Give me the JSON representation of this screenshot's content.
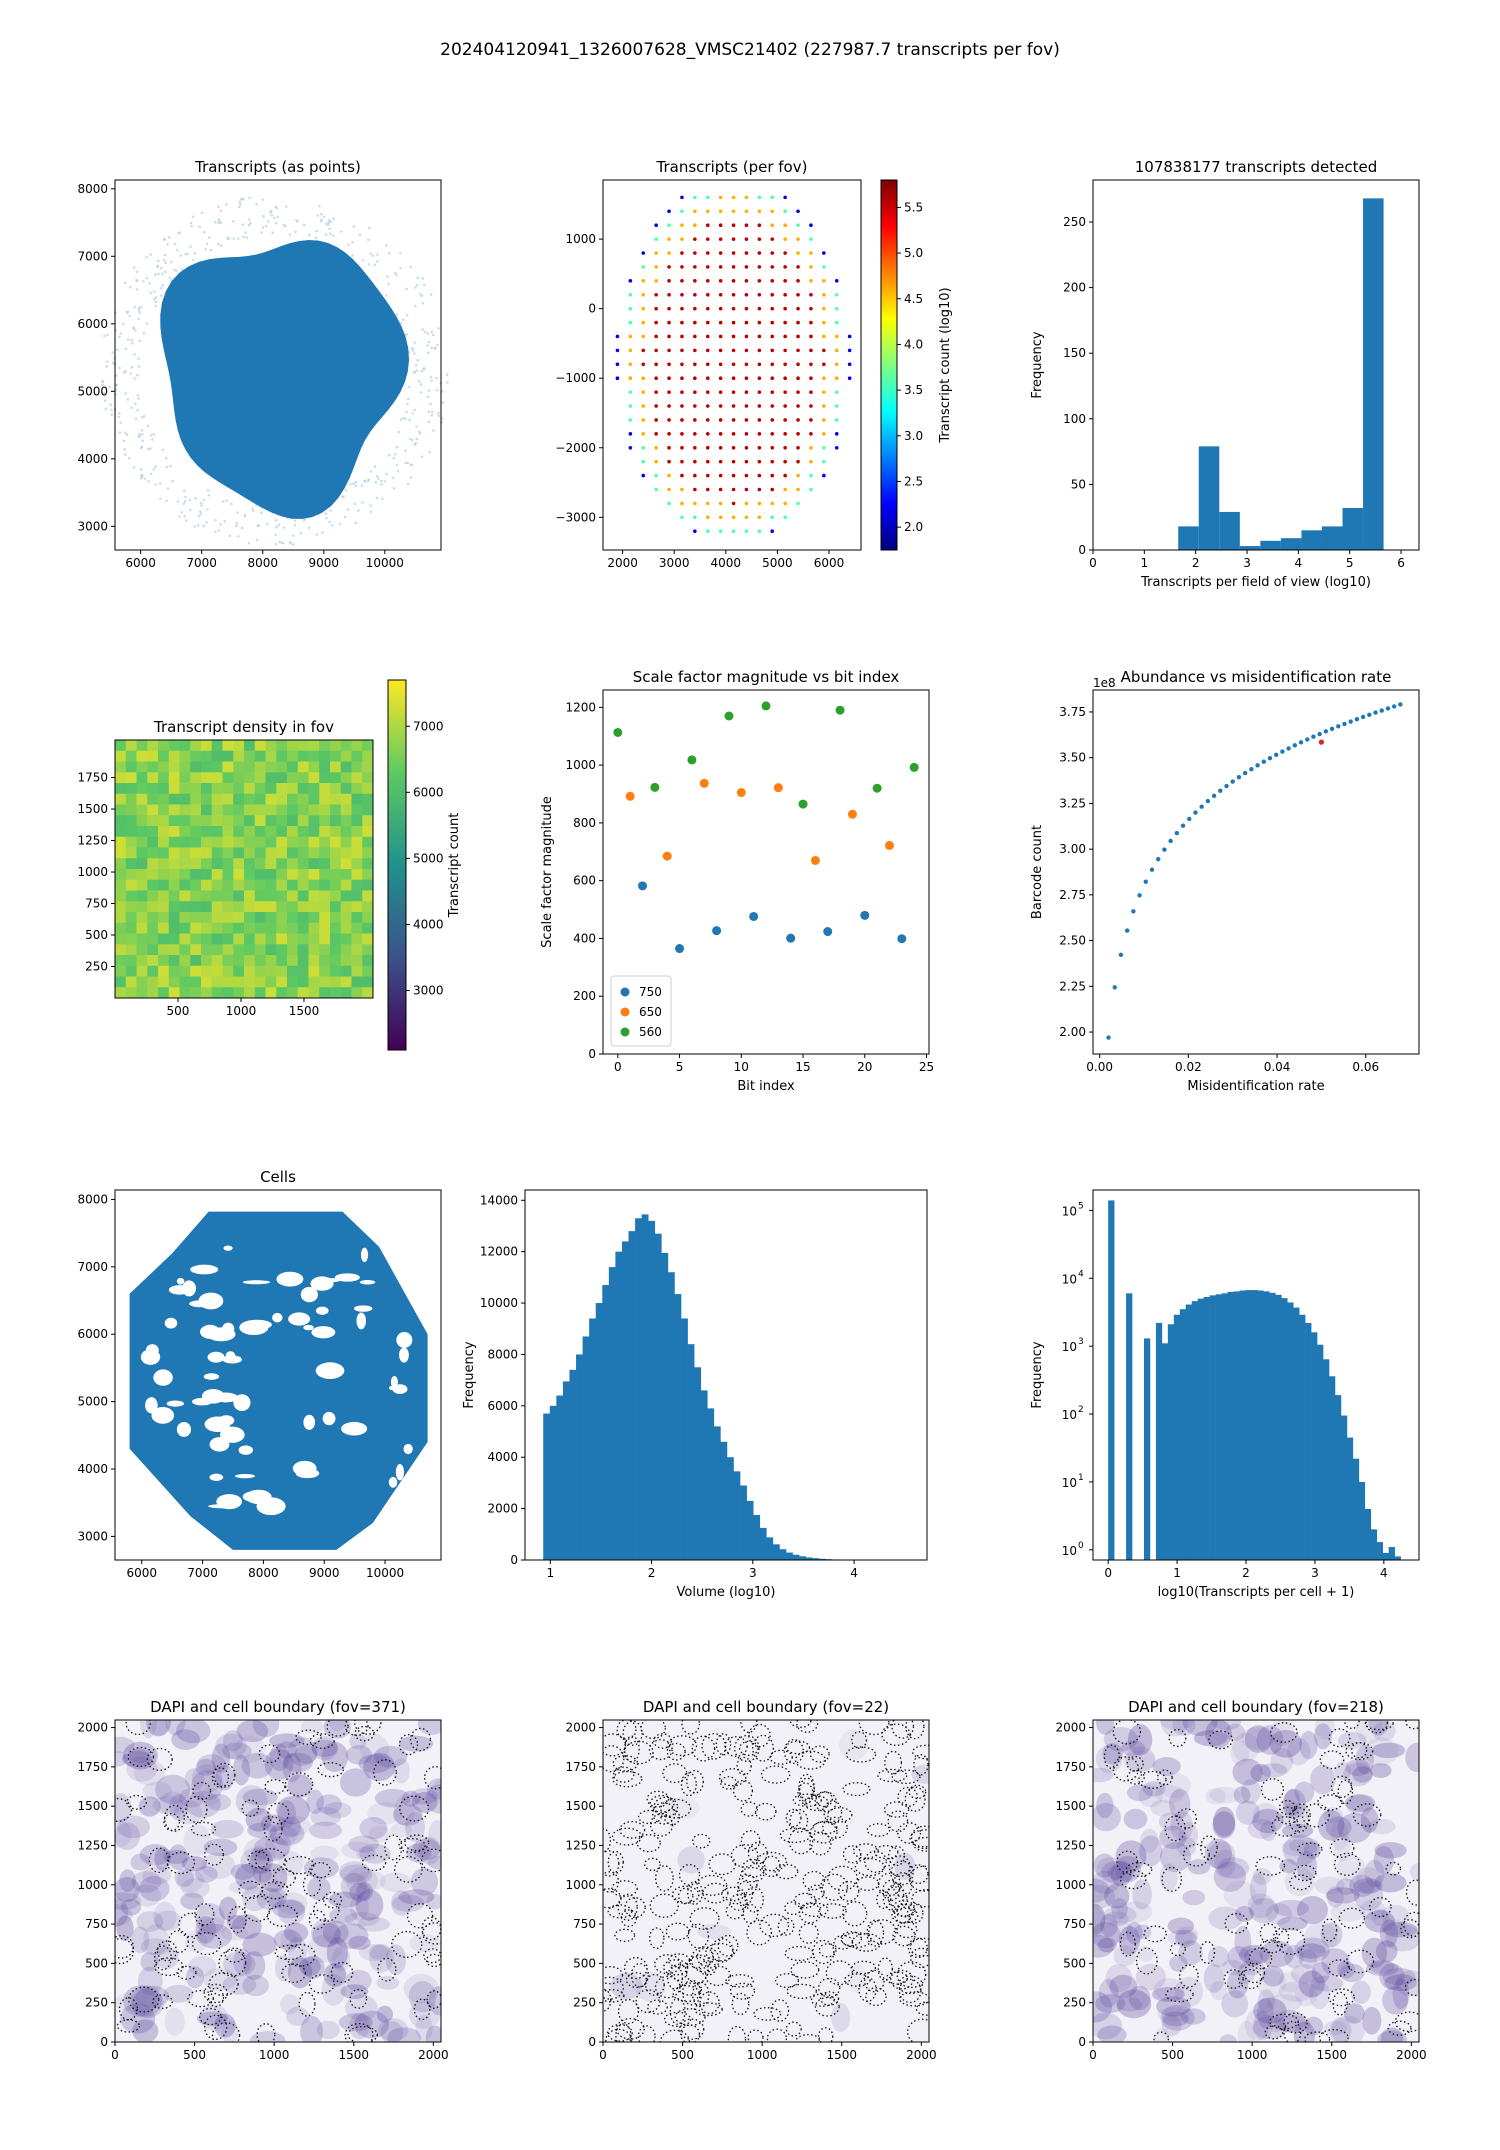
{
  "suptitle": "202404120941_1326007628_VMSC21402 (227987.7 transcripts per fov)",
  "colors": {
    "blue": "#1f77b4",
    "orange": "#ff7f0e",
    "green": "#2ca02c",
    "dapi": "#5b4a9e"
  },
  "chart_data": [
    {
      "id": "p1",
      "type": "scatter",
      "title": "Transcripts (as points)",
      "xlabel": "",
      "ylabel": "",
      "xlim": [
        5580,
        10920
      ],
      "ylim": [
        2650,
        8130
      ],
      "xticks": [
        "6000",
        "7000",
        "8000",
        "9000",
        "10000"
      ],
      "yticks": [
        "3000",
        "4000",
        "5000",
        "6000",
        "7000",
        "8000"
      ],
      "shape_note": "dense tissue blob centred near x=8300, y=5300 with sparse halo"
    },
    {
      "id": "p2",
      "type": "scatter",
      "title": "Transcripts (per fov)",
      "xlabel": "",
      "ylabel": "",
      "xlim": [
        1620,
        6620
      ],
      "ylim": [
        -3470,
        1850
      ],
      "xticks": [
        "2000",
        "3000",
        "4000",
        "5000",
        "6000"
      ],
      "yticks": [
        "−3000",
        "−2000",
        "−1000",
        "0",
        "1000"
      ],
      "colorbar": {
        "label": "Transcript count (log10)",
        "range": [
          1.75,
          5.8
        ],
        "ticks": [
          "2.0",
          "2.5",
          "3.0",
          "3.5",
          "4.0",
          "4.5",
          "5.0",
          "5.5"
        ],
        "cmap": "jet"
      },
      "grid_cols_x": [
        1900,
        2150,
        2400,
        2650,
        2900,
        3150,
        3400,
        3650,
        3900,
        4150,
        4400,
        4650,
        4900,
        5150,
        5400,
        5650,
        5900,
        6150,
        6400
      ],
      "grid_rows_y": [
        1600,
        1400,
        1200,
        1000,
        800,
        600,
        400,
        200,
        0,
        -200,
        -400,
        -600,
        -800,
        -1000,
        -1200,
        -1400,
        -1600,
        -1800,
        -2000,
        -2200,
        -2400,
        -2600,
        -2800,
        -3000,
        -3200
      ]
    },
    {
      "id": "p3",
      "type": "bar",
      "title": "107838177 transcripts detected",
      "xlabel": "Transcripts per field of view (log10)",
      "ylabel": "Frequency",
      "xlim": [
        0,
        6.35
      ],
      "ylim": [
        0,
        282
      ],
      "xticks": [
        "0",
        "1",
        "2",
        "3",
        "4",
        "5",
        "6"
      ],
      "yticks": [
        "0",
        "50",
        "100",
        "150",
        "200",
        "250"
      ],
      "bin_edges": [
        1.66,
        2.06,
        2.46,
        2.86,
        3.26,
        3.66,
        4.06,
        4.46,
        4.86,
        5.26,
        5.66,
        6.06
      ],
      "values": [
        18,
        79,
        29,
        3,
        7,
        9,
        15,
        18,
        32,
        268,
        0
      ]
    },
    {
      "id": "p4",
      "type": "heatmap",
      "title": "Transcript density in fov",
      "xlabel": "",
      "ylabel": "",
      "xlim": [
        0,
        2048
      ],
      "ylim": [
        0,
        2048
      ],
      "xticks": [
        "500",
        "1000",
        "1500"
      ],
      "yticks": [
        "250",
        "500",
        "750",
        "1000",
        "1250",
        "1500",
        "1750"
      ],
      "colorbar": {
        "label": "Transcript count",
        "range": [
          2100,
          7700
        ],
        "ticks": [
          "3000",
          "4000",
          "5000",
          "6000",
          "7000"
        ],
        "cmap": "viridis"
      },
      "value_range": [
        6000,
        7300
      ]
    },
    {
      "id": "p5",
      "type": "scatter",
      "title": "Scale factor magnitude vs bit index",
      "xlabel": "Bit index",
      "ylabel": "Scale factor magnitude",
      "xlim": [
        -1.2,
        25.2
      ],
      "ylim": [
        0,
        1260
      ],
      "xticks": [
        "0",
        "5",
        "10",
        "15",
        "20",
        "25"
      ],
      "yticks": [
        "0",
        "200",
        "400",
        "600",
        "800",
        "1000",
        "1200"
      ],
      "legend_position": "lower-left",
      "series": [
        {
          "name": "750",
          "x": [
            2,
            5,
            8,
            11,
            14,
            17,
            20,
            23
          ],
          "y": [
            582,
            365,
            427,
            476,
            401,
            424,
            480,
            399
          ]
        },
        {
          "name": "650",
          "x": [
            1,
            4,
            7,
            10,
            13,
            16,
            19,
            22
          ],
          "y": [
            892,
            685,
            937,
            905,
            922,
            670,
            830,
            722
          ]
        },
        {
          "name": "560",
          "x": [
            0,
            3,
            6,
            9,
            12,
            15,
            18,
            21,
            24
          ],
          "y": [
            1113,
            923,
            1018,
            1170,
            1205,
            865,
            1190,
            920,
            992
          ]
        }
      ]
    },
    {
      "id": "p6",
      "type": "scatter",
      "title": "Abundance vs misidentification rate",
      "xlabel": "Misidentification rate",
      "ylabel": "Barcode count",
      "offset_text": "1e8",
      "xlim": [
        -0.0015,
        0.072
      ],
      "ylim": [
        1.88,
        3.87
      ],
      "xticks": [
        "0.00",
        "0.02",
        "0.04",
        "0.06"
      ],
      "yticks": [
        "2.00",
        "2.25",
        "2.50",
        "2.75",
        "3.00",
        "3.25",
        "3.50",
        "3.75"
      ],
      "highlight": {
        "x": 0.05,
        "y": 3.585
      },
      "curve": {
        "x_start": 0.002,
        "x_end": 0.069,
        "x_step": 0.0014,
        "y_at_start": 1.97,
        "y_at_end": 3.8
      }
    },
    {
      "id": "p7",
      "type": "scatter",
      "title": "Cells",
      "xlabel": "",
      "ylabel": "",
      "xlim": [
        5560,
        10920
      ],
      "ylim": [
        2650,
        8140
      ],
      "xticks": [
        "6000",
        "7000",
        "8000",
        "9000",
        "10000"
      ],
      "yticks": [
        "3000",
        "4000",
        "5000",
        "6000",
        "7000",
        "8000"
      ],
      "shape_note": "blocky octagonal tissue outline with white voids"
    },
    {
      "id": "p8",
      "type": "bar",
      "title": "",
      "xlabel": "Volume (log10)",
      "ylabel": "Frequency",
      "xlim": [
        0.75,
        4.72
      ],
      "ylim": [
        0,
        14400
      ],
      "xticks": [
        "1",
        "2",
        "3",
        "4"
      ],
      "yticks": [
        "0",
        "2000",
        "4000",
        "6000",
        "8000",
        "10000",
        "12000",
        "14000"
      ],
      "bin_start": 0.93,
      "bin_width": 0.0648,
      "values": [
        5700,
        6000,
        6400,
        6950,
        7400,
        8000,
        8700,
        9400,
        10000,
        10700,
        11400,
        12000,
        12400,
        12800,
        13300,
        13450,
        13200,
        12700,
        11950,
        11200,
        10350,
        9400,
        8400,
        7500,
        6600,
        5900,
        5200,
        4600,
        4000,
        3450,
        2900,
        2300,
        1750,
        1250,
        880,
        610,
        420,
        290,
        205,
        145,
        100,
        70,
        48,
        32,
        20
      ]
    },
    {
      "id": "p9",
      "type": "bar",
      "title": "",
      "xlabel": "log10(Transcripts per cell + 1)",
      "ylabel": "Frequency",
      "yscale": "log",
      "xlim": [
        -0.22,
        4.51
      ],
      "ylim_log10": [
        -0.15,
        5.3
      ],
      "xticks": [
        "0",
        "1",
        "2",
        "3",
        "4"
      ],
      "ytick_exponents": [
        0,
        1,
        2,
        3,
        4,
        5
      ],
      "bin_start": 0,
      "bin_width": 0.0866,
      "values": [
        140000,
        0,
        0,
        6000,
        0,
        0,
        1300,
        0,
        2200,
        1100,
        2100,
        2900,
        3500,
        4100,
        4600,
        5000,
        5300,
        5600,
        5800,
        6000,
        6300,
        6400,
        6600,
        6700,
        6700,
        6600,
        6400,
        6100,
        5700,
        5100,
        4400,
        3700,
        2900,
        2200,
        1600,
        1050,
        640,
        360,
        190,
        95,
        45,
        22,
        10,
        4,
        2,
        1.3,
        0.9,
        1.1,
        0.8,
        0.6
      ]
    },
    {
      "id": "p10",
      "type": "heatmap",
      "title": "DAPI and cell boundary (fov=371)",
      "xlabel": "",
      "ylabel": "",
      "xlim": [
        0,
        2048
      ],
      "ylim": [
        0,
        2048
      ],
      "xticks": [
        "0",
        "500",
        "1000",
        "1500",
        "2000"
      ],
      "yticks": [
        "0",
        "250",
        "500",
        "750",
        "1000",
        "1250",
        "1500",
        "1750",
        "2000"
      ]
    },
    {
      "id": "p11",
      "type": "heatmap",
      "title": "DAPI and cell boundary (fov=22)",
      "xlabel": "",
      "ylabel": "",
      "xlim": [
        0,
        2048
      ],
      "ylim": [
        0,
        2048
      ],
      "xticks": [
        "0",
        "500",
        "1000",
        "1500",
        "2000"
      ],
      "yticks": [
        "0",
        "250",
        "500",
        "750",
        "1000",
        "1250",
        "1500",
        "1750",
        "2000"
      ]
    },
    {
      "id": "p12",
      "type": "heatmap",
      "title": "DAPI and cell boundary (fov=218)",
      "xlabel": "",
      "ylabel": "",
      "xlim": [
        0,
        2048
      ],
      "ylim": [
        0,
        2048
      ],
      "xticks": [
        "0",
        "500",
        "1000",
        "1500",
        "2000"
      ],
      "yticks": [
        "0",
        "250",
        "500",
        "750",
        "1000",
        "1250",
        "1500",
        "1750",
        "2000"
      ]
    }
  ]
}
